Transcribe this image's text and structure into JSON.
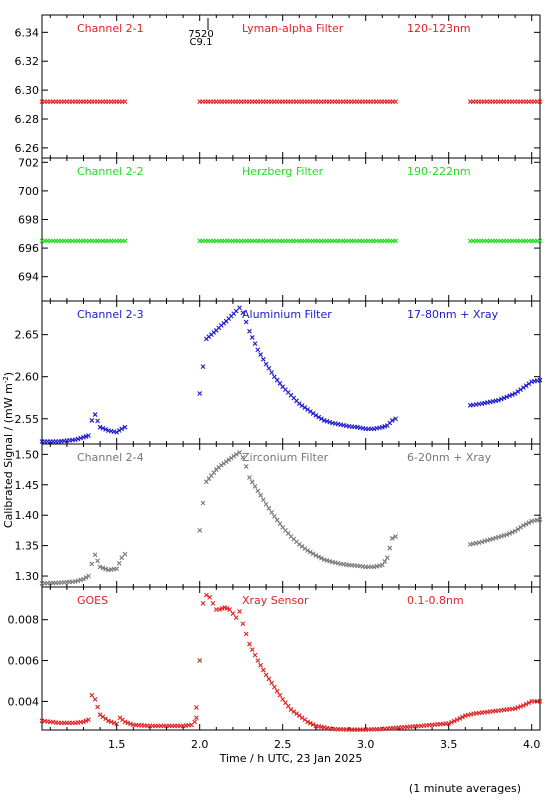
{
  "figure": {
    "ylabel": "Calibrated Signal / (mW m",
    "ylabel_sup": "-2",
    "ylabel_close": ")",
    "xlabel": "Time / h UTC, 23 Jan 2025",
    "footnote": "(1 minute averages)",
    "marker_top_1": "7520",
    "marker_top_2": "C9.1",
    "xticks": [
      "1.5",
      "2.0",
      "2.5",
      "3.0",
      "3.5",
      "4.0"
    ]
  },
  "panels": [
    {
      "name": "Channel 2-1",
      "filter": "Lyman-alpha Filter",
      "band": "120-123nm",
      "color": "#dd2222",
      "yticks": [
        "6.34",
        "6.32",
        "6.30",
        "6.28",
        "6.26"
      ]
    },
    {
      "name": "Channel 2-2",
      "filter": "Herzberg Filter",
      "band": "190-222nm",
      "color": "#22dd22",
      "yticks": [
        "702",
        "700",
        "698",
        "696",
        "694"
      ]
    },
    {
      "name": "Channel 2-3",
      "filter": "Aluminium Filter",
      "band": "17-80nm + Xray",
      "color": "#1a1acc",
      "yticks": [
        "2.65",
        "2.60",
        "2.55"
      ]
    },
    {
      "name": "Channel 2-4",
      "filter": "Zirconium Filter",
      "band": "6-20nm + Xray",
      "color": "#777777",
      "yticks": [
        "1.50",
        "1.45",
        "1.40",
        "1.35",
        "1.30"
      ]
    },
    {
      "name": "GOES",
      "filter": "Xray Sensor",
      "band": "0.1-0.8nm",
      "color": "#dd2222",
      "yticks": [
        "0.008",
        "0.006",
        "0.004"
      ]
    }
  ],
  "chart_data": [
    {
      "type": "scatter",
      "title": "Channel 2-1 Lyman-alpha Filter 120-123nm",
      "xlim": [
        1.05,
        4.05
      ],
      "ylim": [
        6.253,
        6.352
      ],
      "series": [
        {
          "name": "Channel 2-1",
          "color": "#dd2222",
          "segments": [
            {
              "x": [
                1.05,
                1.55
              ],
              "y": [
                6.292,
                6.292
              ]
            },
            {
              "x": [
                2.0,
                3.18
              ],
              "y": [
                6.292,
                6.292
              ]
            },
            {
              "x": [
                3.63,
                4.05
              ],
              "y": [
                6.292,
                6.292
              ]
            }
          ]
        }
      ]
    },
    {
      "type": "scatter",
      "title": "Channel 2-2 Herzberg Filter 190-222nm",
      "xlim": [
        1.05,
        4.05
      ],
      "ylim": [
        692.3,
        702.3
      ],
      "series": [
        {
          "name": "Channel 2-2",
          "color": "#22dd22",
          "segments": [
            {
              "x": [
                1.05,
                1.55
              ],
              "y": [
                696.5,
                696.5
              ]
            },
            {
              "x": [
                2.0,
                3.18
              ],
              "y": [
                696.5,
                696.5
              ]
            },
            {
              "x": [
                3.63,
                4.05
              ],
              "y": [
                696.5,
                696.5
              ]
            }
          ]
        }
      ]
    },
    {
      "type": "scatter",
      "title": "Channel 2-3 Aluminium Filter 17-80nm + Xray",
      "xlim": [
        1.05,
        4.05
      ],
      "ylim": [
        2.52,
        2.69
      ],
      "series": [
        {
          "name": "Channel 2-3",
          "color": "#1a1acc",
          "segments": [
            {
              "x": [
                1.05,
                1.15,
                1.25,
                1.3,
                1.33,
                1.35,
                1.37,
                1.4,
                1.45,
                1.5,
                1.53,
                1.55
              ],
              "y": [
                2.523,
                2.523,
                2.525,
                2.528,
                2.53,
                2.548,
                2.555,
                2.54,
                2.536,
                2.534,
                2.538,
                2.54
              ]
            },
            {
              "x": [
                2.0,
                2.02,
                2.04,
                2.07,
                2.1,
                2.13,
                2.16,
                2.19,
                2.22,
                2.24,
                2.26,
                2.28,
                2.3,
                2.35,
                2.4,
                2.45,
                2.5,
                2.55,
                2.6,
                2.65,
                2.7,
                2.75,
                2.8,
                2.85,
                2.9,
                2.95,
                3.0,
                3.05,
                3.1,
                3.13,
                3.16,
                3.18
              ],
              "y": [
                2.58,
                2.612,
                2.645,
                2.65,
                2.655,
                2.661,
                2.666,
                2.672,
                2.678,
                2.682,
                2.676,
                2.665,
                2.654,
                2.632,
                2.615,
                2.6,
                2.588,
                2.578,
                2.568,
                2.561,
                2.554,
                2.548,
                2.545,
                2.543,
                2.541,
                2.54,
                2.538,
                2.538,
                2.54,
                2.542,
                2.548,
                2.55
              ]
            },
            {
              "x": [
                3.63,
                3.7,
                3.75,
                3.8,
                3.85,
                3.9,
                3.95,
                4.0,
                4.05
              ],
              "y": [
                2.566,
                2.568,
                2.57,
                2.572,
                2.576,
                2.58,
                2.587,
                2.594,
                2.596
              ]
            }
          ]
        }
      ]
    },
    {
      "type": "scatter",
      "title": "Channel 2-4 Zirconium Filter 6-20nm + Xray",
      "xlim": [
        1.05,
        4.05
      ],
      "ylim": [
        1.282,
        1.517
      ],
      "series": [
        {
          "name": "Channel 2-4",
          "color": "#777777",
          "segments": [
            {
              "x": [
                1.05,
                1.15,
                1.25,
                1.3,
                1.33,
                1.35,
                1.37,
                1.4,
                1.45,
                1.5,
                1.53,
                1.55
              ],
              "y": [
                1.288,
                1.289,
                1.291,
                1.295,
                1.3,
                1.32,
                1.335,
                1.315,
                1.31,
                1.312,
                1.33,
                1.336
              ]
            },
            {
              "x": [
                2.0,
                2.02,
                2.04,
                2.07,
                2.1,
                2.13,
                2.16,
                2.19,
                2.22,
                2.24,
                2.26,
                2.28,
                2.3,
                2.35,
                2.4,
                2.45,
                2.5,
                2.55,
                2.6,
                2.65,
                2.7,
                2.75,
                2.8,
                2.85,
                2.9,
                2.95,
                3.0,
                3.05,
                3.1,
                3.13,
                3.16,
                3.18
              ],
              "y": [
                1.375,
                1.42,
                1.455,
                1.465,
                1.475,
                1.482,
                1.488,
                1.494,
                1.5,
                1.503,
                1.495,
                1.48,
                1.462,
                1.44,
                1.418,
                1.398,
                1.38,
                1.365,
                1.352,
                1.342,
                1.334,
                1.327,
                1.323,
                1.32,
                1.318,
                1.317,
                1.315,
                1.315,
                1.318,
                1.33,
                1.362,
                1.365
              ]
            },
            {
              "x": [
                3.63,
                3.7,
                3.75,
                3.8,
                3.85,
                3.9,
                3.95,
                4.0,
                4.05
              ],
              "y": [
                1.352,
                1.356,
                1.36,
                1.364,
                1.368,
                1.374,
                1.383,
                1.39,
                1.393
              ]
            }
          ]
        }
      ]
    },
    {
      "type": "scatter",
      "title": "GOES Xray Sensor 0.1-0.8nm",
      "xlim": [
        1.05,
        4.05
      ],
      "ylim": [
        0.0026,
        0.0096
      ],
      "series": [
        {
          "name": "GOES",
          "color": "#dd2222",
          "segments": [
            {
              "x": [
                1.05,
                1.1,
                1.15,
                1.2,
                1.25,
                1.3,
                1.33,
                1.35,
                1.37,
                1.4,
                1.45,
                1.5,
                1.52,
                1.55,
                1.6,
                1.7,
                1.8,
                1.9,
                1.95,
                1.97,
                1.98
              ],
              "y": [
                0.00305,
                0.003,
                0.00295,
                0.00295,
                0.00295,
                0.003,
                0.0031,
                0.0043,
                0.0041,
                0.00335,
                0.00305,
                0.0029,
                0.0032,
                0.003,
                0.00285,
                0.0028,
                0.0028,
                0.0028,
                0.00285,
                0.003,
                0.0032
              ]
            },
            {
              "x": [
                1.98,
                2.0,
                2.02,
                2.04,
                2.06,
                2.08,
                2.1,
                2.12,
                2.15,
                2.18,
                2.2,
                2.22,
                2.24,
                2.26,
                2.28,
                2.3,
                2.35,
                2.4,
                2.45,
                2.5,
                2.55,
                2.6,
                2.65,
                2.7,
                2.8,
                2.9,
                3.0,
                3.1,
                3.2,
                3.3,
                3.4,
                3.5,
                3.55,
                3.6,
                3.65,
                3.7,
                3.8,
                3.9,
                3.95,
                4.0,
                4.05
              ],
              "y": [
                0.0037,
                0.006,
                0.0088,
                0.0092,
                0.0091,
                0.0088,
                0.0085,
                0.0085,
                0.0086,
                0.0085,
                0.0083,
                0.0081,
                0.0084,
                0.0078,
                0.0073,
                0.0068,
                0.006,
                0.0053,
                0.0047,
                0.0041,
                0.0036,
                0.0033,
                0.003,
                0.0028,
                0.00265,
                0.00262,
                0.00262,
                0.00265,
                0.00272,
                0.00278,
                0.00285,
                0.00292,
                0.0031,
                0.0033,
                0.0034,
                0.00345,
                0.00355,
                0.00365,
                0.0038,
                0.004,
                0.004
              ]
            }
          ]
        }
      ]
    }
  ]
}
